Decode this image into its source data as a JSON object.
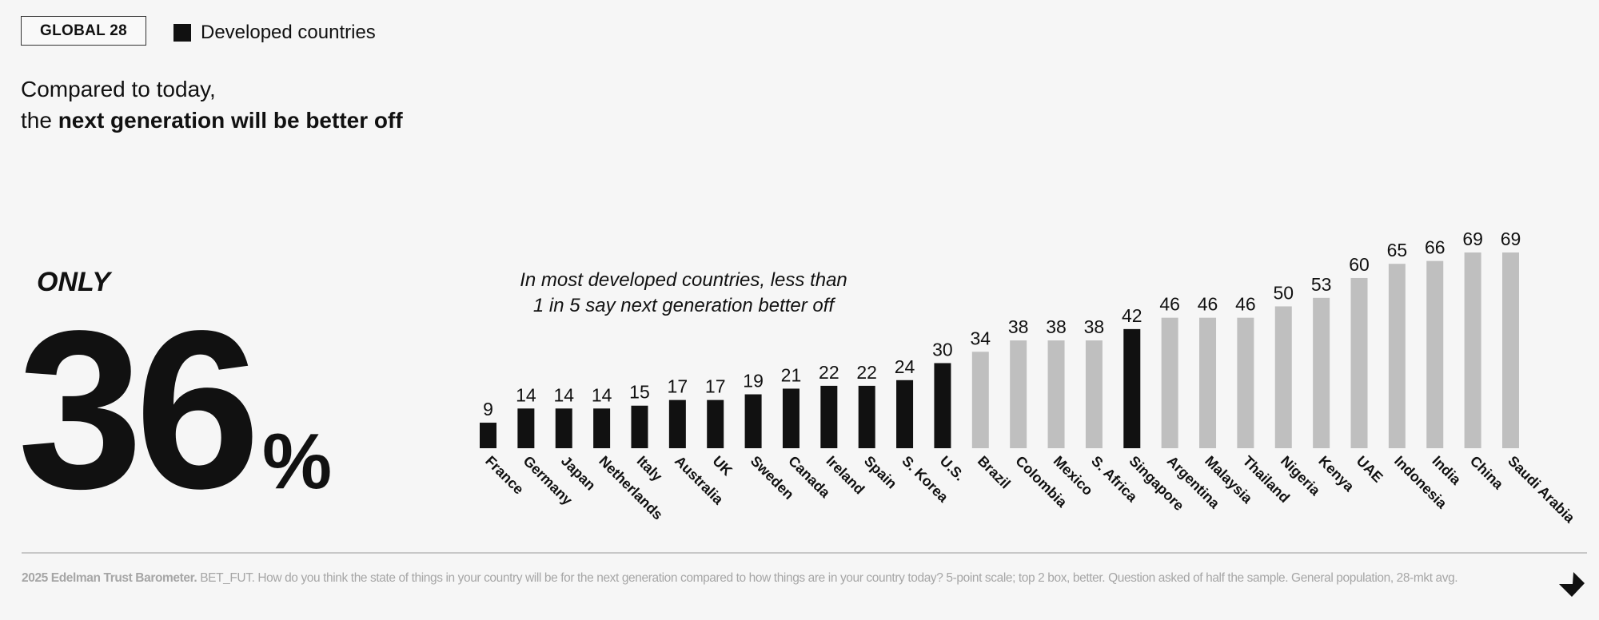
{
  "header": {
    "region_badge": "GLOBAL 28",
    "legend": {
      "label": "Developed countries",
      "swatch_color": "#111111"
    }
  },
  "headline": {
    "line1": "Compared to today,",
    "line2_prefix": "the ",
    "line2_bold": "next generation will be better off"
  },
  "callout": {
    "qualifier": "ONLY",
    "value": "36",
    "unit": "%"
  },
  "annotation": {
    "line1": "In most developed countries, less than",
    "line2": "1 in 5 say next generation better off"
  },
  "footer": {
    "source_bold": "2025 Edelman Trust Barometer.",
    "source_text": " BET_FUT. How do you think the state of things in your country will be for the next generation compared to how things are in your country today? 5-point scale; top 2 box, better. Question asked of half the sample. General population, 28-mkt avg.",
    "next_icon": "arrow-down-right-icon"
  },
  "chart_data": {
    "type": "bar",
    "title": "Compared to today, the next generation will be better off",
    "xlabel": "",
    "ylabel": "",
    "ylim": [
      0,
      69
    ],
    "grid": false,
    "legend_position": "top-left",
    "colors": {
      "developed": "#111111",
      "developing": "#bfbfbf"
    },
    "categories": [
      "France",
      "Germany",
      "Japan",
      "Netherlands",
      "Italy",
      "Australia",
      "UK",
      "Sweden",
      "Canada",
      "Ireland",
      "Spain",
      "S. Korea",
      "U.S.",
      "Brazil",
      "Colombia",
      "Mexico",
      "S. Africa",
      "Singapore",
      "Argentina",
      "Malaysia",
      "Thailand",
      "Nigeria",
      "Kenya",
      "UAE",
      "Indonesia",
      "India",
      "China",
      "Saudi Arabia"
    ],
    "values": [
      9,
      14,
      14,
      14,
      15,
      17,
      17,
      19,
      21,
      22,
      22,
      24,
      30,
      34,
      38,
      38,
      38,
      42,
      46,
      46,
      46,
      50,
      53,
      60,
      65,
      66,
      69,
      69
    ],
    "developed": [
      true,
      true,
      true,
      true,
      true,
      true,
      true,
      true,
      true,
      true,
      true,
      true,
      true,
      false,
      false,
      false,
      false,
      true,
      false,
      false,
      false,
      false,
      false,
      false,
      false,
      false,
      false,
      false
    ],
    "series": [
      {
        "name": "Developed countries",
        "values": [
          9,
          14,
          14,
          14,
          15,
          17,
          17,
          19,
          21,
          22,
          22,
          24,
          30,
          null,
          null,
          null,
          null,
          42,
          null,
          null,
          null,
          null,
          null,
          null,
          null,
          null,
          null,
          null
        ]
      }
    ]
  }
}
